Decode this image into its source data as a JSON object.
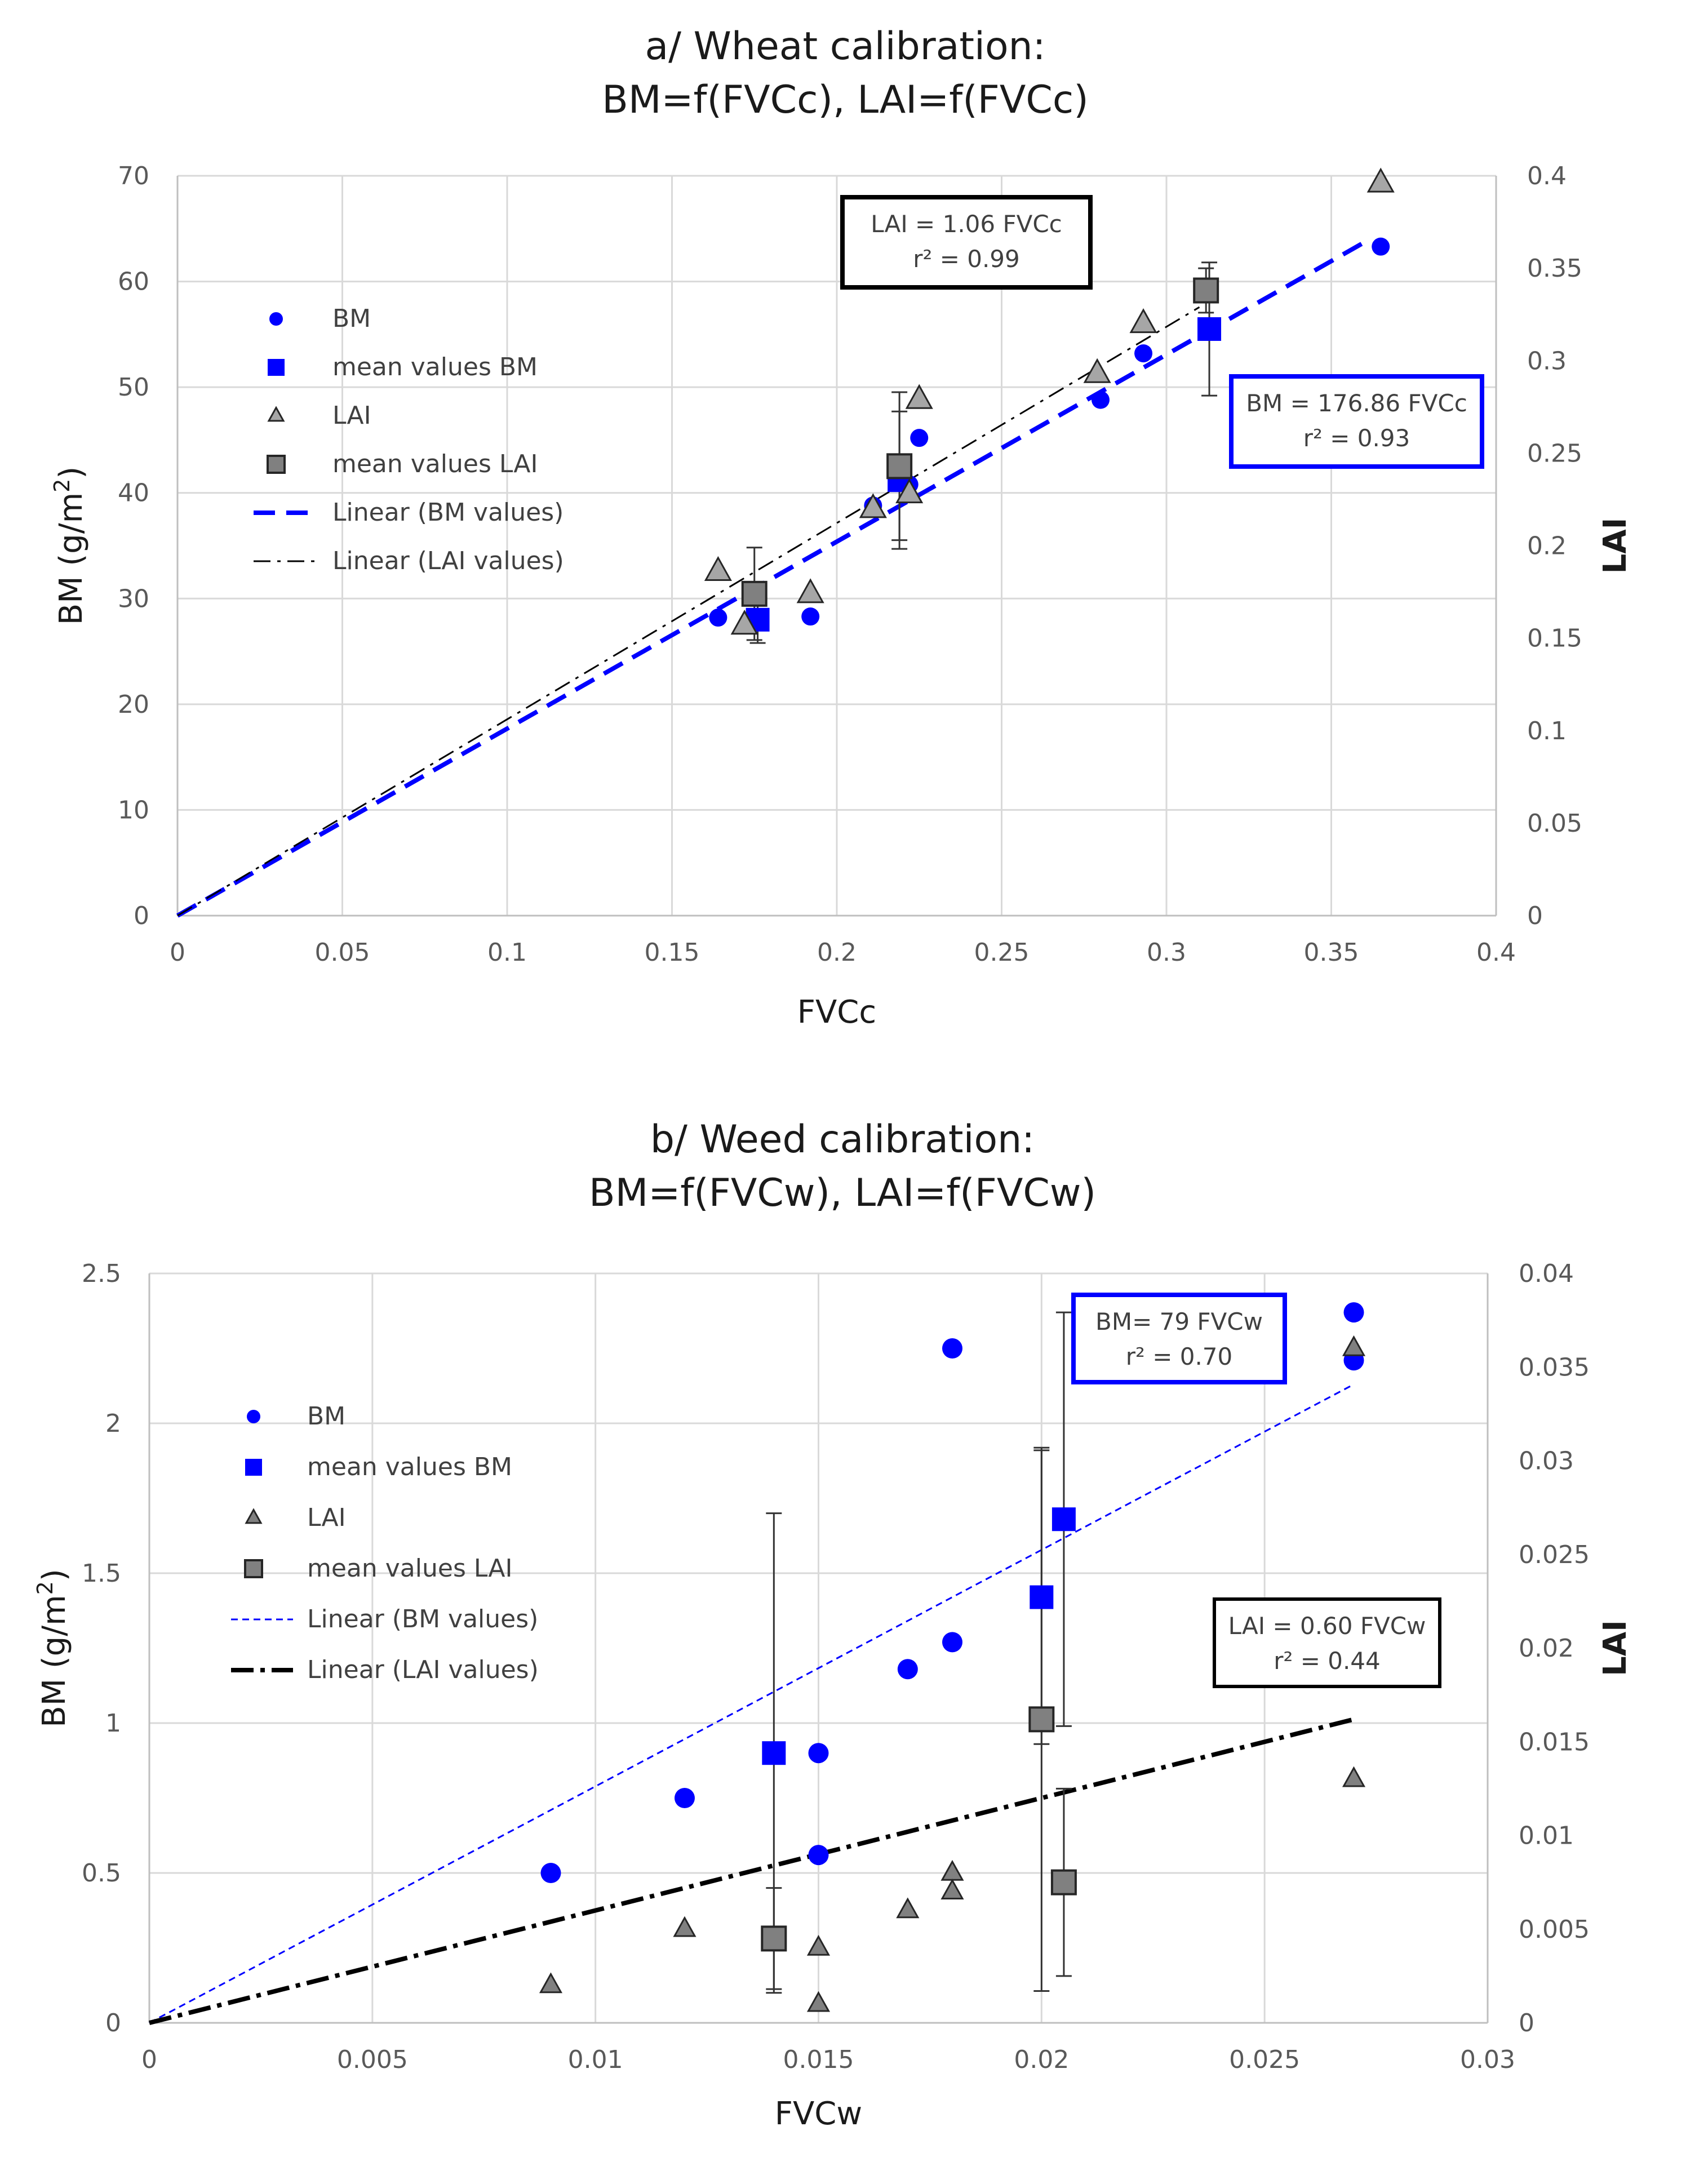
{
  "chart_data": [
    {
      "type": "scatter",
      "title_lines": [
        "a/ Wheat calibration:",
        "BM=f(FVCc), LAI=f(FVCc)"
      ],
      "xlabel": "FVCc",
      "ylabel": "BM (g/m²)",
      "ylabel_parts": {
        "base": "BM (g/m",
        "sup": "2",
        "end": ")"
      },
      "y2label": "LAI",
      "xlim": [
        0,
        0.4
      ],
      "ylim": [
        0,
        70
      ],
      "y2lim": [
        0,
        0.4
      ],
      "xticks": [
        "0",
        "0.05",
        "0.1",
        "0.15",
        "0.2",
        "0.25",
        "0.3",
        "0.35",
        "0.4"
      ],
      "yticks": [
        "0",
        "10",
        "20",
        "30",
        "40",
        "50",
        "60",
        "70"
      ],
      "y2ticks": [
        "0",
        "0.05",
        "0.1",
        "0.15",
        "0.2",
        "0.25",
        "0.3",
        "0.35",
        "0.4"
      ],
      "legend": [
        "BM",
        "mean values BM",
        "LAI",
        "mean values LAI",
        "Linear (BM values)",
        "Linear (LAI values)"
      ],
      "series": [
        {
          "name": "BM",
          "axis": "left",
          "marker": "circle",
          "color": "#0000ff",
          "x": [
            0.164,
            0.192,
            0.211,
            0.222,
            0.225,
            0.28,
            0.293,
            0.365
          ],
          "y": [
            28.2,
            28.3,
            38.8,
            40.8,
            45.2,
            48.8,
            53.2,
            63.3
          ]
        },
        {
          "name": "mean values BM",
          "axis": "left",
          "marker": "square",
          "color": "#0000ff",
          "x": [
            0.176,
            0.219,
            0.313
          ],
          "y": [
            28.0,
            41.2,
            55.5
          ],
          "err": [
            2.2,
            6.5,
            6.3
          ]
        },
        {
          "name": "LAI",
          "axis": "right",
          "marker": "triangle",
          "color": "#a6a6a6",
          "x": [
            0.164,
            0.172,
            0.192,
            0.211,
            0.222,
            0.225,
            0.279,
            0.293,
            0.365
          ],
          "y": [
            0.186,
            0.157,
            0.174,
            0.22,
            0.228,
            0.279,
            0.293,
            0.32,
            0.396
          ]
        },
        {
          "name": "mean values LAI",
          "axis": "right",
          "marker": "square",
          "color": "#808080",
          "x": [
            0.175,
            0.219,
            0.312
          ],
          "y": [
            0.174,
            0.243,
            0.338
          ],
          "err": [
            0.025,
            0.04,
            0.012
          ]
        },
        {
          "name": "Linear (BM values)",
          "axis": "left",
          "kind": "line",
          "style": "dash",
          "color": "#0000ff",
          "x": [
            0,
            0.36
          ],
          "y": [
            0,
            63.7
          ]
        },
        {
          "name": "Linear (LAI values)",
          "axis": "right",
          "kind": "line",
          "style": "dashdot",
          "color": "#000000",
          "x": [
            0,
            0.31
          ],
          "y": [
            0,
            0.329
          ]
        }
      ],
      "annotations": [
        {
          "lines": [
            "LAI = 1.06 FVCc",
            "r² = 0.99"
          ],
          "border_color": "#000000"
        },
        {
          "lines": [
            "BM = 176.86 FVCc",
            "r² = 0.93"
          ],
          "border_color": "#0000ff"
        }
      ]
    },
    {
      "type": "scatter",
      "title_lines": [
        "b/ Weed calibration:",
        "BM=f(FVCw), LAI=f(FVCw)"
      ],
      "xlabel": "FVCw",
      "ylabel": "BM (g/m²)",
      "ylabel_parts": {
        "base": "BM (g/m",
        "sup": "2",
        "end": ")"
      },
      "y2label": "LAI",
      "xlim": [
        0,
        0.03
      ],
      "ylim": [
        0,
        2.5
      ],
      "y2lim": [
        0,
        0.04
      ],
      "xticks": [
        "0",
        "0.005",
        "0.01",
        "0.015",
        "0.02",
        "0.025",
        "0.03"
      ],
      "yticks": [
        "0",
        "0.5",
        "1",
        "1.5",
        "2",
        "2.5"
      ],
      "y2ticks": [
        "0",
        "0.005",
        "0.01",
        "0.015",
        "0.02",
        "0.025",
        "0.03",
        "0.035",
        "0.04"
      ],
      "legend": [
        "BM",
        "mean values BM",
        "LAI",
        "mean values LAI",
        "Linear (BM values)",
        "Linear (LAI values)"
      ],
      "series": [
        {
          "name": "BM",
          "axis": "left",
          "marker": "circle",
          "color": "#0000ff",
          "x": [
            0.009,
            0.012,
            0.015,
            0.015,
            0.017,
            0.018,
            0.018,
            0.027,
            0.027
          ],
          "y": [
            0.5,
            0.75,
            0.56,
            0.9,
            1.18,
            1.27,
            2.25,
            2.21,
            2.37
          ]
        },
        {
          "name": "mean values BM",
          "axis": "left",
          "marker": "square",
          "color": "#0000ff",
          "x": [
            0.014,
            0.02,
            0.0205
          ],
          "y": [
            0.9,
            1.42,
            1.68
          ],
          "err": [
            0.8,
            0.49,
            0.69
          ]
        },
        {
          "name": "LAI",
          "axis": "right",
          "marker": "triangle",
          "color": "#808080",
          "x": [
            0.009,
            0.012,
            0.015,
            0.015,
            0.017,
            0.018,
            0.018,
            0.027,
            0.027
          ],
          "y": [
            0.002,
            0.005,
            0.004,
            0.001,
            0.006,
            0.008,
            0.007,
            0.013,
            0.036
          ]
        },
        {
          "name": "mean values LAI",
          "axis": "right",
          "marker": "square",
          "color": "#808080",
          "x": [
            0.014,
            0.02,
            0.0205
          ],
          "y": [
            0.0045,
            0.0162,
            0.0075
          ],
          "err": [
            0.0027,
            0.0145,
            0.005
          ]
        },
        {
          "name": "Linear (BM values)",
          "axis": "left",
          "kind": "line",
          "style": "dot",
          "color": "#0000ff",
          "x": [
            0,
            0.027
          ],
          "y": [
            0,
            2.13
          ]
        },
        {
          "name": "Linear (LAI values)",
          "axis": "right",
          "kind": "line",
          "style": "dashdot",
          "color": "#000000",
          "x": [
            0,
            0.027
          ],
          "y": [
            0,
            0.0162
          ]
        }
      ],
      "annotations": [
        {
          "lines": [
            "BM= 79  FVCw",
            "r² = 0.70"
          ],
          "border_color": "#0000ff"
        },
        {
          "lines": [
            "LAI = 0.60 FVCw",
            "r² = 0.44"
          ],
          "border_color": "#000000"
        }
      ]
    }
  ]
}
